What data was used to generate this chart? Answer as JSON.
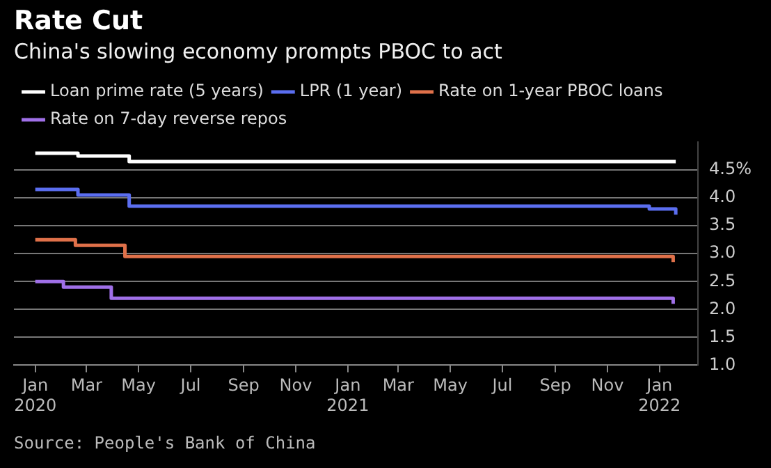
{
  "chart_data": {
    "type": "step",
    "title": "Rate Cut",
    "subtitle": "China's slowing economy prompts PBOC to act",
    "series": [
      {
        "name": "Loan prime rate (5 years)",
        "color": "#ffffff",
        "x": [
          "2020-01-01",
          "2020-02-20",
          "2020-04-20",
          "2022-01-20"
        ],
        "values": [
          4.8,
          4.75,
          4.65,
          4.65
        ]
      },
      {
        "name": "LPR (1 year)",
        "color": "#5b6ef0",
        "x": [
          "2020-01-01",
          "2020-02-20",
          "2020-04-20",
          "2021-12-20",
          "2022-01-20"
        ],
        "values": [
          4.15,
          4.05,
          3.85,
          3.8,
          3.7
        ]
      },
      {
        "name": "Rate on 1-year PBOC loans",
        "color": "#e0714a",
        "x": [
          "2020-01-01",
          "2020-02-17",
          "2020-04-15",
          "2022-01-17"
        ],
        "values": [
          3.25,
          3.15,
          2.95,
          2.85
        ]
      },
      {
        "name": "Rate on 7-day reverse repos",
        "color": "#a070e8",
        "x": [
          "2020-01-01",
          "2020-02-03",
          "2020-03-30",
          "2022-01-17"
        ],
        "values": [
          2.5,
          2.4,
          2.2,
          2.1
        ]
      }
    ],
    "xlim": [
      "2019-12-07",
      "2022-02-15"
    ],
    "xticks": [
      {
        "value": "2020-01",
        "label": "Jan\n2020"
      },
      {
        "value": "2020-03",
        "label": "Mar"
      },
      {
        "value": "2020-05",
        "label": "May"
      },
      {
        "value": "2020-07",
        "label": "Jul"
      },
      {
        "value": "2020-09",
        "label": "Sep"
      },
      {
        "value": "2020-11",
        "label": "Nov"
      },
      {
        "value": "2021-01",
        "label": "Jan\n2021"
      },
      {
        "value": "2021-03",
        "label": "Mar"
      },
      {
        "value": "2021-05",
        "label": "May"
      },
      {
        "value": "2021-07",
        "label": "Jul"
      },
      {
        "value": "2021-09",
        "label": "Sep"
      },
      {
        "value": "2021-11",
        "label": "Nov"
      },
      {
        "value": "2022-01",
        "label": "Jan\n2022"
      }
    ],
    "ylim": [
      1,
      5
    ],
    "yticks": [
      {
        "value": 1,
        "label": "1.0"
      },
      1.5,
      {
        "value": 2,
        "label": "2.0"
      },
      2.5,
      {
        "value": 3,
        "label": "3.0"
      },
      3.5,
      {
        "value": 4,
        "label": "4.0"
      },
      {
        "value": 4.5,
        "label": "4.5%"
      }
    ],
    "grid": "y",
    "legend": "top left",
    "line_style": "solid",
    "marker": "none",
    "annotations": [
      "Source: People's Bank of China"
    ]
  }
}
